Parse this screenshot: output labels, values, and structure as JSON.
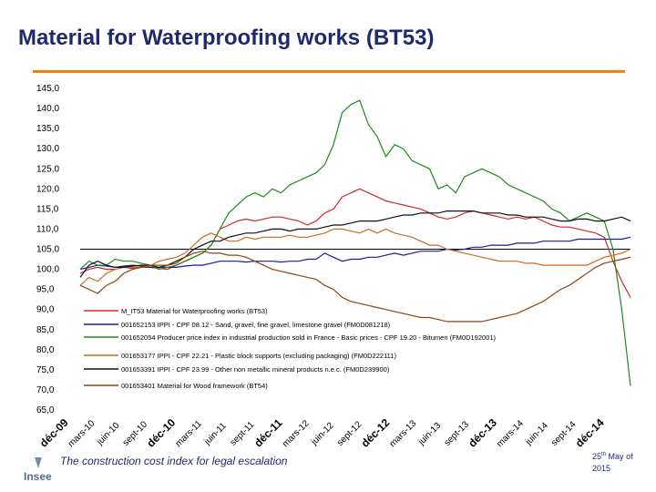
{
  "slide": {
    "title": "Material for Waterproofing works (BT53)",
    "footer_caption": "The construction cost index for legal escalation",
    "date_day": "25",
    "date_suffix": "th",
    "date_month": "May",
    "date_of": "of",
    "date_year": "2015",
    "logo_text": "Insee"
  },
  "colors": {
    "accent": "#f07f1e",
    "title": "#1f2a6e"
  },
  "chart_data": {
    "type": "line",
    "title": "",
    "xlabel": "",
    "ylabel": "",
    "ylim": [
      65,
      145
    ],
    "grid": false,
    "reference_line": 105,
    "yticks": [
      "145,0",
      "140,0",
      "135,0",
      "130,0",
      "125,0",
      "120,0",
      "115,0",
      "110,0",
      "105,0",
      "100,0",
      "95,0",
      "90,0",
      "85,0",
      "80,0",
      "75,0",
      "70,0",
      "65,0"
    ],
    "xticks": [
      "déc-09",
      "mars-10",
      "juin-10",
      "sept-10",
      "déc-10",
      "mars-11",
      "juin-11",
      "sept-11",
      "déc-11",
      "mars-12",
      "juin-12",
      "sept-12",
      "déc-12",
      "mars-13",
      "juin-13",
      "sept-13",
      "déc-13",
      "mars-14",
      "juin-14",
      "sept-14",
      "déc-14"
    ],
    "x": [
      0,
      1,
      2,
      3,
      4,
      5,
      6,
      7,
      8,
      9,
      10,
      11,
      12,
      13,
      14,
      15,
      16,
      17,
      18,
      19,
      20,
      21,
      22,
      23,
      24,
      25,
      26,
      27,
      28,
      29,
      30,
      31,
      32,
      33,
      34,
      35,
      36,
      37,
      38,
      39,
      40,
      41,
      42,
      43,
      44,
      45,
      46,
      47,
      48,
      49,
      50,
      51,
      52,
      53,
      54,
      55,
      56,
      57,
      58,
      59,
      60,
      61,
      62,
      63
    ],
    "series": [
      {
        "name": "M_IT53 Material for Waterproofing works (BT53)",
        "color": "#cc2b2b",
        "values": [
          99,
          100,
          100.5,
          100,
          100,
          100.5,
          100.2,
          100.5,
          100.5,
          100.2,
          100,
          101,
          102,
          103,
          104,
          106,
          110,
          111,
          112,
          112.5,
          112,
          112.5,
          113,
          113,
          112.5,
          112,
          111,
          112,
          114,
          115,
          118,
          119,
          120,
          119,
          118,
          117,
          116.5,
          116,
          115.5,
          115,
          114,
          113,
          112.5,
          113,
          114,
          114.5,
          114,
          113.5,
          113,
          112.5,
          113,
          112.5,
          113,
          112,
          111,
          110.5,
          110.5,
          110,
          109.5,
          109,
          108,
          102,
          97,
          93
        ]
      },
      {
        "name": "001652153 IPPI - CPF 08.12 - Sand, gravel, fine gravel, limestone gravel (FM0D081218)",
        "color": "#1a1a9e",
        "values": [
          100,
          100.5,
          101,
          100.8,
          100.5,
          100.8,
          101,
          100.8,
          100.5,
          100.5,
          100.5,
          100.5,
          100.8,
          101,
          101,
          101.5,
          102,
          102,
          102,
          101.8,
          102,
          102,
          102,
          101.8,
          102,
          102,
          102.5,
          102.5,
          104,
          103,
          102,
          102.5,
          102.5,
          103,
          103,
          103.5,
          104,
          103.5,
          104,
          104.5,
          104.5,
          104.5,
          105,
          104.8,
          105,
          105.5,
          105.5,
          106,
          106,
          106,
          106.5,
          106.5,
          106.5,
          107,
          107,
          107,
          107,
          107.5,
          107.5,
          107.5,
          107.5,
          107.5,
          107.5,
          108
        ]
      },
      {
        "name": "001652054 Producer price index in industrial production sold in France - Basic prices - CPF 19.20 - Bitumen (FM0D192001)",
        "color": "#1e8a1e",
        "values": [
          100,
          102,
          101,
          101,
          102.5,
          102,
          102,
          101.5,
          101,
          100,
          100.5,
          101,
          102,
          103,
          104,
          106,
          110,
          114,
          116,
          118,
          119,
          118,
          120,
          119,
          121,
          122,
          123,
          124,
          126,
          131,
          139,
          141,
          142,
          136,
          133,
          128,
          131,
          130,
          127,
          126,
          125,
          120,
          121,
          119,
          123,
          124,
          125,
          124,
          123,
          121,
          120,
          119,
          118,
          117,
          115,
          114,
          112,
          113,
          114,
          113,
          112,
          105,
          90,
          71
        ]
      },
      {
        "name": "001653177 IPPI - CPF 22.21 - Plastic block supports (excluding packaging) (FM0D222111)",
        "color": "#d2691e",
        "values": [
          96,
          98,
          97,
          99,
          100,
          100.5,
          100.5,
          100.5,
          100.8,
          102,
          102.5,
          103,
          104,
          106,
          108,
          109,
          108,
          107,
          107,
          108,
          107.5,
          108,
          108,
          108,
          108.5,
          108,
          108,
          108.5,
          109,
          110,
          110,
          109.5,
          109,
          110,
          109,
          110,
          109,
          108.5,
          108,
          107,
          106,
          106,
          105,
          104.5,
          104,
          103.5,
          103,
          102.5,
          102,
          102,
          102,
          101.5,
          101.5,
          101,
          101,
          101,
          101,
          101,
          101,
          102,
          103,
          103.5,
          104,
          105
        ]
      },
      {
        "name": "001653391 IPPI - CPF 23.99 - Other non metallic mineral products n.e.c. (FM0D239900)",
        "color": "#111111",
        "values": [
          98,
          101,
          102,
          101,
          100.5,
          100.5,
          100.8,
          101,
          101,
          100.5,
          101,
          102,
          103,
          105,
          106,
          107,
          107,
          108,
          108.5,
          109,
          109,
          109.5,
          110,
          110,
          109.5,
          110,
          110,
          110,
          110.5,
          111,
          111,
          111.5,
          112,
          112,
          112,
          112.5,
          113,
          113.5,
          113.5,
          114,
          114,
          114,
          114.5,
          114.5,
          114.5,
          114.5,
          114,
          114,
          114,
          113.5,
          113.5,
          113,
          113,
          113,
          112.5,
          112,
          112,
          112.5,
          112.5,
          112,
          112,
          112.5,
          113,
          112
        ]
      },
      {
        "name": "001653401 Material for Wood framework (BT54)",
        "color": "#8b4513",
        "values": [
          96,
          95,
          94,
          96,
          97,
          99,
          100,
          100.5,
          101,
          101,
          101,
          101.5,
          103,
          104,
          104.5,
          104,
          104,
          103.5,
          103.5,
          103,
          102,
          101,
          100,
          99.5,
          99,
          98.5,
          98,
          97.5,
          96,
          95,
          93,
          92,
          91.5,
          91,
          90.5,
          90,
          89.5,
          89,
          88.5,
          88,
          88,
          87.5,
          87,
          87,
          87,
          87,
          87,
          87.5,
          88,
          88.5,
          89,
          90,
          91,
          92,
          93.5,
          95,
          96,
          97.5,
          99,
          100.5,
          101.5,
          102,
          102.5,
          103
        ]
      }
    ]
  }
}
